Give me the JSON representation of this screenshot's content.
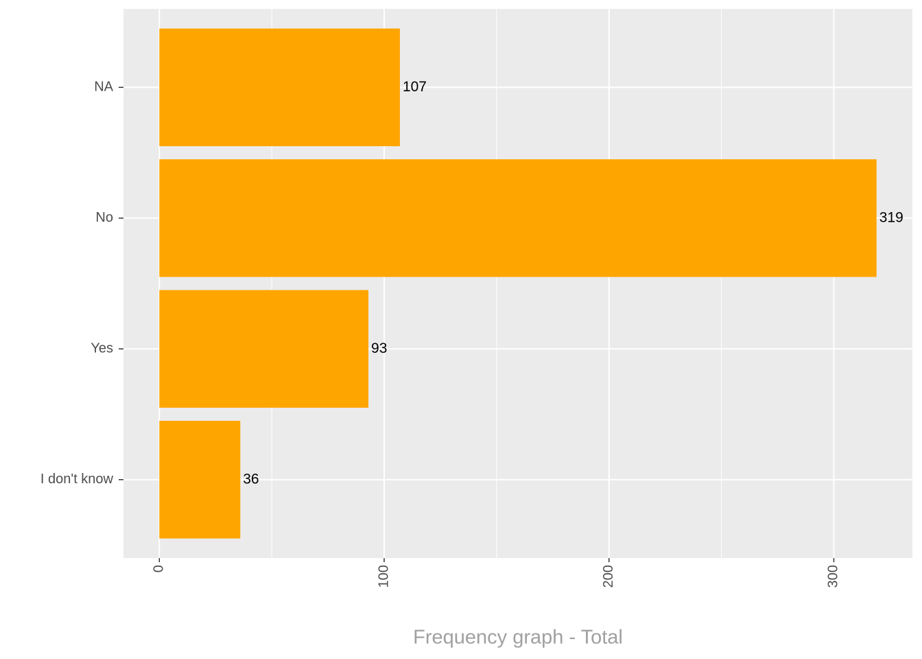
{
  "chart_data": {
    "type": "bar",
    "orientation": "horizontal",
    "x_label": "Frequency graph - Total",
    "categories": [
      "NA",
      "No",
      "Yes",
      "I don't know"
    ],
    "values": [
      107,
      319,
      93,
      36
    ],
    "color": "#FFA500",
    "xlim": [
      -15.95,
      334.95
    ],
    "xticks": [
      0,
      100,
      200,
      300
    ],
    "grid": true
  }
}
